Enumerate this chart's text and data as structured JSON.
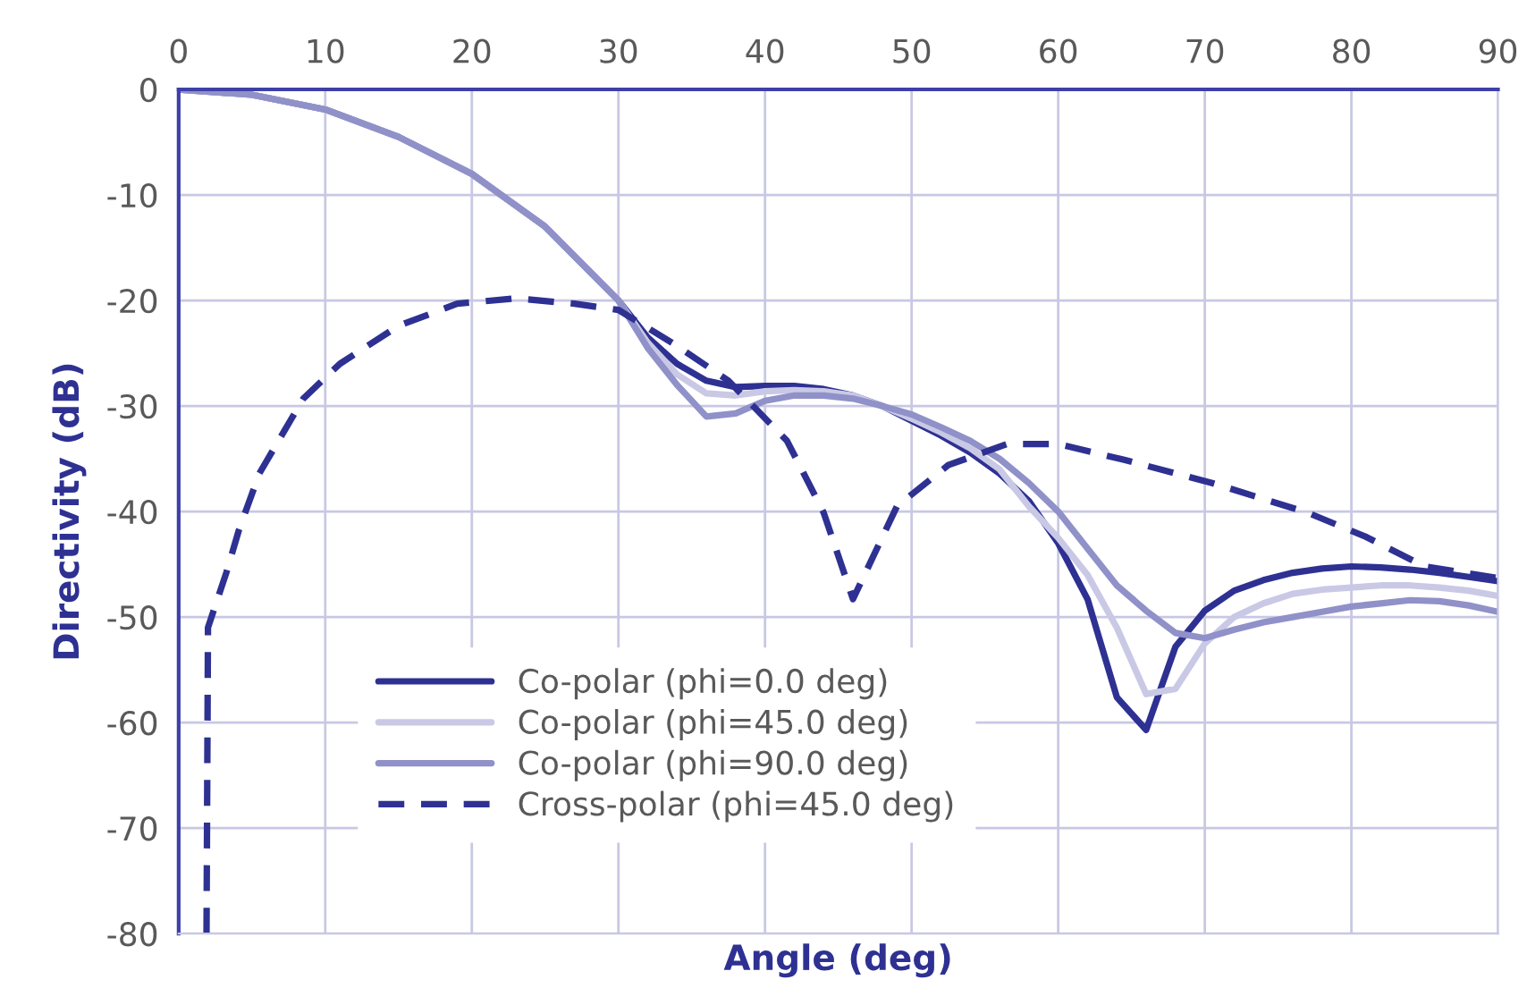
{
  "chart_data": {
    "type": "line",
    "xlabel": "Angle (deg)",
    "ylabel": "Directivity (dB)",
    "xlim": [
      0,
      90
    ],
    "xticks": [
      0,
      10,
      20,
      30,
      40,
      50,
      60,
      70,
      80,
      90
    ],
    "ylim": [
      -80,
      0
    ],
    "yticks": [
      -80,
      -70,
      -60,
      -50,
      -40,
      -30,
      -20,
      -10,
      0
    ],
    "grid": true,
    "legend": "bottom",
    "marker": "none",
    "series": [
      {
        "name": "Co-polar (phi=0.0 deg)",
        "color": "#2e3192",
        "line_style": "solid",
        "x": [
          0,
          5,
          10,
          15,
          20,
          25,
          30,
          32,
          34,
          36,
          38,
          40,
          42,
          44,
          46,
          48,
          50,
          52,
          54,
          56,
          58,
          60,
          62,
          64,
          66,
          68,
          70,
          72,
          74,
          76,
          78,
          80,
          82,
          84,
          86,
          88,
          90
        ],
        "values": [
          0,
          -0.5,
          -1.9,
          -4.5,
          -8,
          -13,
          -20,
          -23.5,
          -26,
          -27.6,
          -28.2,
          -28.1,
          -28.1,
          -28.4,
          -29,
          -30,
          -31.4,
          -32.8,
          -34.4,
          -36.4,
          -39,
          -43,
          -48.3,
          -57.6,
          -60.7,
          -52.8,
          -49.4,
          -47.5,
          -46.5,
          -45.8,
          -45.4,
          -45.2,
          -45.3,
          -45.5,
          -45.8,
          -46.2,
          -46.6
        ]
      },
      {
        "name": "Co-polar (phi=45.0 deg)",
        "color": "#c9c9e6",
        "line_style": "solid",
        "x": [
          0,
          5,
          10,
          15,
          20,
          25,
          30,
          32,
          34,
          36,
          38,
          40,
          42,
          44,
          46,
          48,
          50,
          52,
          54,
          56,
          58,
          60,
          62,
          64,
          66,
          68,
          70,
          72,
          74,
          76,
          78,
          80,
          82,
          84,
          86,
          88,
          90
        ],
        "values": [
          0,
          -0.5,
          -1.9,
          -4.5,
          -8,
          -13,
          -20,
          -24,
          -27,
          -28.8,
          -29,
          -28.6,
          -28.5,
          -28.6,
          -29,
          -30,
          -31.2,
          -32.5,
          -34,
          -36,
          -39.5,
          -42.5,
          -46,
          -51,
          -57.3,
          -56.8,
          -52.5,
          -50,
          -48.7,
          -47.8,
          -47.4,
          -47.2,
          -47,
          -47,
          -47.2,
          -47.5,
          -48
        ]
      },
      {
        "name": "Co-polar (phi=90.0 deg)",
        "color": "#9091c8",
        "line_style": "solid",
        "x": [
          0,
          5,
          10,
          15,
          20,
          25,
          30,
          32,
          34,
          36,
          38,
          40,
          42,
          44,
          46,
          48,
          50,
          52,
          54,
          56,
          58,
          60,
          62,
          64,
          66,
          68,
          70,
          72,
          74,
          76,
          78,
          80,
          82,
          84,
          86,
          88,
          90
        ],
        "values": [
          0,
          -0.5,
          -1.9,
          -4.5,
          -8,
          -13,
          -20,
          -24.5,
          -28,
          -31,
          -30.7,
          -29.5,
          -29,
          -29,
          -29.3,
          -30,
          -30.8,
          -32,
          -33.3,
          -35,
          -37.3,
          -40,
          -43.5,
          -47,
          -49.4,
          -51.5,
          -52,
          -51.2,
          -50.5,
          -50,
          -49.5,
          -49,
          -48.7,
          -48.4,
          -48.5,
          -48.9,
          -49.5
        ]
      },
      {
        "name": "Cross-polar (phi=45.0 deg)",
        "color": "#2e3192",
        "line_style": "dashed",
        "x": [
          1.9,
          2.0,
          3.25,
          4.1,
          5.5,
          8.5,
          11,
          15,
          19,
          23,
          27,
          30,
          34,
          37.5,
          41.5,
          44,
          46,
          49,
          52.5,
          56.5,
          60,
          64.5,
          70.5,
          77,
          81,
          85,
          90
        ],
        "values": [
          -80,
          -51,
          -45.8,
          -41.8,
          -36.4,
          -29.3,
          -26,
          -22.4,
          -20.3,
          -19.8,
          -20.3,
          -20.9,
          -24.3,
          -27.6,
          -33.3,
          -40.1,
          -48.3,
          -39.5,
          -35.6,
          -33.6,
          -33.6,
          -35.1,
          -37.3,
          -40.1,
          -42.4,
          -45.2,
          -46.3
        ]
      }
    ]
  }
}
